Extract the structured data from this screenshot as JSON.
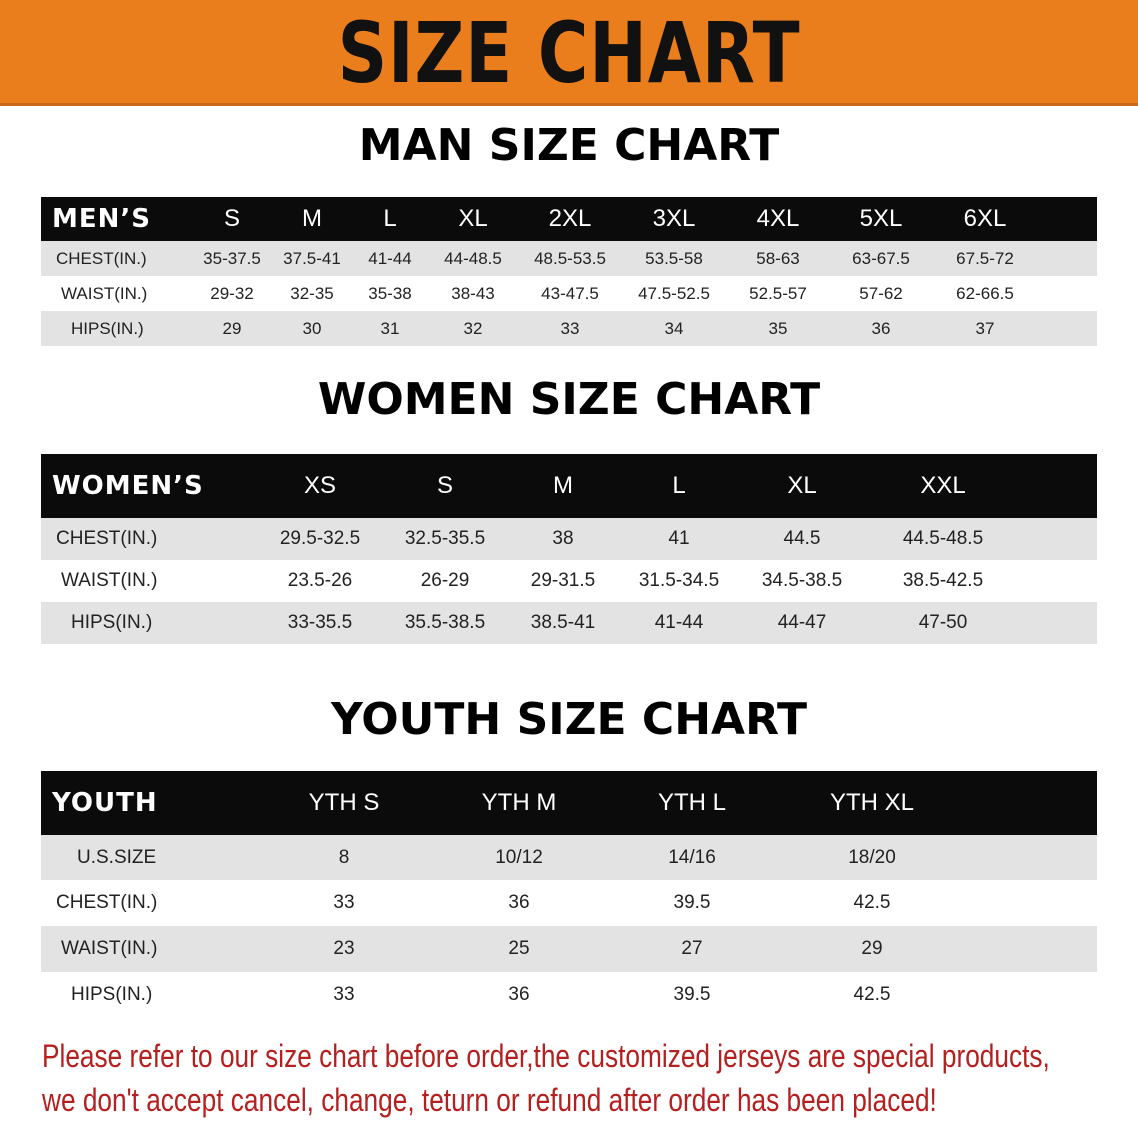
{
  "banner": {
    "title": "SIZE CHART",
    "color": "#ea7d1c"
  },
  "men": {
    "title": "MAN SIZE CHART",
    "header_label": "MEN’S",
    "sizes": [
      "S",
      "M",
      "L",
      "XL",
      "2XL",
      "3XL",
      "4XL",
      "5XL",
      "6XL"
    ],
    "rows": [
      {
        "label": "CHEST(IN.)",
        "values": [
          "35-37.5",
          "37.5-41",
          "41-44",
          "44-48.5",
          "48.5-53.5",
          "53.5-58",
          "58-63",
          "63-67.5",
          "67.5-72"
        ]
      },
      {
        "label": "WAIST(IN.)",
        "values": [
          "29-32",
          "32-35",
          "35-38",
          "38-43",
          "43-47.5",
          "47.5-52.5",
          "52.5-57",
          "57-62",
          "62-66.5"
        ]
      },
      {
        "label": "HIPS(IN.)",
        "values": [
          "29",
          "30",
          "31",
          "32",
          "33",
          "34",
          "35",
          "36",
          "37"
        ]
      }
    ]
  },
  "women": {
    "title": "WOMEN SIZE CHART",
    "header_label": "WOMEN’S",
    "sizes": [
      "XS",
      "S",
      "M",
      "L",
      "XL",
      "XXL"
    ],
    "rows": [
      {
        "label": "CHEST(IN.)",
        "values": [
          "29.5-32.5",
          "32.5-35.5",
          "38",
          "41",
          "44.5",
          "44.5-48.5"
        ]
      },
      {
        "label": "WAIST(IN.)",
        "values": [
          "23.5-26",
          "26-29",
          "29-31.5",
          "31.5-34.5",
          "34.5-38.5",
          "38.5-42.5"
        ]
      },
      {
        "label": "HIPS(IN.)",
        "values": [
          "33-35.5",
          "35.5-38.5",
          "38.5-41",
          "41-44",
          "44-47",
          "47-50"
        ]
      }
    ]
  },
  "youth": {
    "title": "YOUTH SIZE CHART",
    "header_label": "YOUTH",
    "sizes": [
      "YTH S",
      "YTH M",
      "YTH L",
      "YTH XL"
    ],
    "rows": [
      {
        "label": "U.S.SIZE",
        "values": [
          "8",
          "10/12",
          "14/16",
          "18/20"
        ]
      },
      {
        "label": "CHEST(IN.)",
        "values": [
          "33",
          "36",
          "39.5",
          "42.5"
        ]
      },
      {
        "label": "WAIST(IN.)",
        "values": [
          "23",
          "25",
          "27",
          "29"
        ]
      },
      {
        "label": "HIPS(IN.)",
        "values": [
          "33",
          "36",
          "39.5",
          "42.5"
        ]
      }
    ]
  },
  "notice": {
    "line1": "Please refer to our size chart before order,the customized jerseys are special products,",
    "line2": "we don't accept cancel, change, teturn or refund after order has been placed!",
    "color": "#b3201f"
  }
}
